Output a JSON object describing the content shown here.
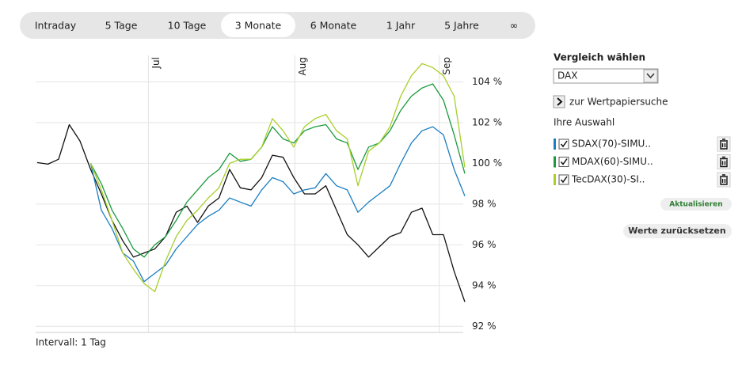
{
  "tabs": [
    "Intraday",
    "5 Tage",
    "10 Tage",
    "3 Monate",
    "6 Monate",
    "1 Jahr",
    "5 Jahre",
    "∞"
  ],
  "active_tab": 3,
  "chart_data": {
    "type": "line",
    "categories": [
      null,
      null,
      null,
      null,
      null,
      null,
      null,
      null,
      null,
      null,
      null,
      null,
      null,
      null,
      null,
      null,
      null,
      null,
      null,
      null,
      null,
      null,
      null,
      null,
      null,
      null,
      null,
      null,
      null,
      null,
      null,
      null,
      null,
      null,
      null,
      null,
      null,
      null,
      null,
      null,
      null
    ],
    "xlim": [
      0,
      40
    ],
    "xticks": [
      {
        "value": 10.4,
        "label": "Jul"
      },
      {
        "value": 24.1,
        "label": "Aug"
      },
      {
        "value": 37.6,
        "label": "Sep"
      }
    ],
    "ylim": [
      91.7,
      105.3
    ],
    "yticks": [
      {
        "value": 92,
        "label": "92 %"
      },
      {
        "value": 94,
        "label": "94 %"
      },
      {
        "value": 96,
        "label": "96 %"
      },
      {
        "value": 98,
        "label": "98 %"
      },
      {
        "value": 100,
        "label": "100 %"
      },
      {
        "value": 102,
        "label": "102 %"
      },
      {
        "value": 104,
        "label": "104 %"
      }
    ],
    "grid": true,
    "series": [
      {
        "color": "#111111",
        "values": [
          100.04,
          99.96,
          100.2,
          101.9,
          101.1,
          99.7,
          98.5,
          97.2,
          96.2,
          95.4,
          95.6,
          95.8,
          96.4,
          97.6,
          97.9,
          97.1,
          97.9,
          98.3,
          99.7,
          98.8,
          98.7,
          99.3,
          100.4,
          100.3,
          99.3,
          98.5,
          98.5,
          98.9,
          97.7,
          96.5,
          96.0,
          95.4,
          95.9,
          96.4,
          96.6,
          97.6,
          97.8,
          96.5,
          96.5,
          94.7,
          93.2
        ]
      },
      {
        "name": "SDAX(70)-SIMU..",
        "color": "#1a7ec3",
        "values": [
          null,
          null,
          null,
          null,
          null,
          100.0,
          97.7,
          96.8,
          95.6,
          95.2,
          94.2,
          94.6,
          95.0,
          95.8,
          96.4,
          97.0,
          97.4,
          97.7,
          98.3,
          98.1,
          97.9,
          98.7,
          99.3,
          99.1,
          98.5,
          98.7,
          98.8,
          99.5,
          98.9,
          98.7,
          97.6,
          98.1,
          98.5,
          98.9,
          100.0,
          101.0,
          101.6,
          101.8,
          101.4,
          99.7,
          98.4
        ]
      },
      {
        "name": "MDAX(60)-SIMU..",
        "color": "#1a9a3a",
        "values": [
          null,
          null,
          null,
          null,
          null,
          100.0,
          99.0,
          97.7,
          96.8,
          95.8,
          95.4,
          96.0,
          96.4,
          97.2,
          98.1,
          98.7,
          99.3,
          99.7,
          100.5,
          100.1,
          100.2,
          100.8,
          101.8,
          101.2,
          101.0,
          101.6,
          101.8,
          101.9,
          101.2,
          101.0,
          99.7,
          100.8,
          101.0,
          101.6,
          102.6,
          103.3,
          103.7,
          103.9,
          103.1,
          101.4,
          99.5
        ]
      },
      {
        "name": "TecDAX(30)-SI..",
        "color": "#a8cf2a",
        "values": [
          null,
          null,
          null,
          null,
          null,
          100.0,
          98.7,
          97.2,
          95.6,
          94.8,
          94.1,
          93.7,
          95.2,
          96.4,
          97.2,
          97.7,
          98.3,
          98.8,
          100.0,
          100.2,
          100.2,
          100.8,
          102.2,
          101.6,
          100.8,
          101.8,
          102.2,
          102.4,
          101.6,
          101.2,
          98.9,
          100.6,
          101.0,
          101.8,
          103.3,
          104.3,
          104.9,
          104.7,
          104.3,
          103.3,
          99.8
        ]
      }
    ]
  },
  "footer": "Intervall: 1 Tag",
  "sidebar": {
    "title": "Vergleich wählen",
    "select": "DAX",
    "search_link": "zur Wertpapiersuche",
    "selection_title": "Ihre Auswahl",
    "update_button": "Aktualisieren",
    "reset_button": "Werte zurücksetzen"
  }
}
